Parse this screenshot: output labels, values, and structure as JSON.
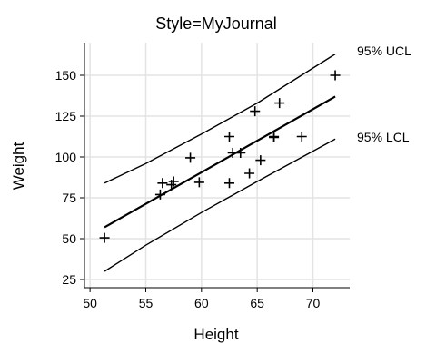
{
  "chart_data": {
    "type": "scatter",
    "title": "Style=MyJournal",
    "xlabel": "Height",
    "ylabel": "Weight",
    "xlim": [
      49.5,
      73.3
    ],
    "ylim": [
      20,
      170
    ],
    "xticks": [
      50,
      55,
      60,
      65,
      70
    ],
    "yticks": [
      25,
      50,
      75,
      100,
      125,
      150
    ],
    "grid": true,
    "points": [
      {
        "x": 51.3,
        "y": 50.5
      },
      {
        "x": 56.3,
        "y": 77
      },
      {
        "x": 56.5,
        "y": 84
      },
      {
        "x": 57.3,
        "y": 83
      },
      {
        "x": 57.5,
        "y": 85
      },
      {
        "x": 59.0,
        "y": 99.5
      },
      {
        "x": 59.8,
        "y": 84.5
      },
      {
        "x": 62.5,
        "y": 84
      },
      {
        "x": 62.5,
        "y": 112.5
      },
      {
        "x": 62.8,
        "y": 102.5
      },
      {
        "x": 63.5,
        "y": 102.5
      },
      {
        "x": 64.3,
        "y": 90
      },
      {
        "x": 64.8,
        "y": 128
      },
      {
        "x": 65.3,
        "y": 98
      },
      {
        "x": 66.5,
        "y": 112
      },
      {
        "x": 66.5,
        "y": 112.5
      },
      {
        "x": 67.0,
        "y": 133
      },
      {
        "x": 69.0,
        "y": 112.5
      },
      {
        "x": 72.0,
        "y": 150
      }
    ],
    "fit_line": {
      "x": [
        51.3,
        72.0
      ],
      "y": [
        57,
        137
      ]
    },
    "ucl_line": {
      "label": "95% UCL",
      "x": [
        51.3,
        55,
        60,
        65,
        72.0
      ],
      "y": [
        84,
        96,
        114,
        133,
        163
      ]
    },
    "lcl_line": {
      "label": "95% LCL",
      "x": [
        51.3,
        55,
        60,
        65,
        72.0
      ],
      "y": [
        30,
        46,
        66,
        85,
        111
      ]
    }
  }
}
